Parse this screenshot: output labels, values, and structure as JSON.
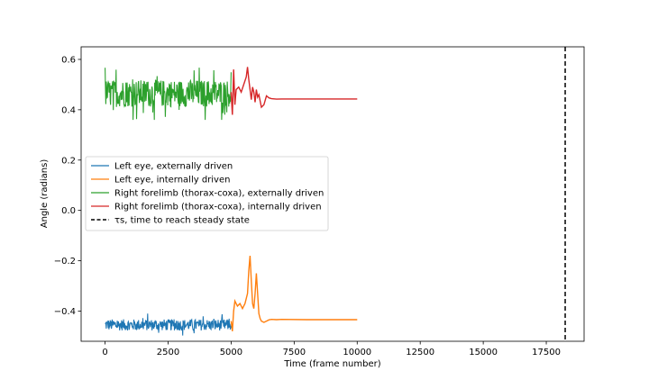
{
  "chart_data": {
    "type": "line",
    "title": "",
    "xlabel": "Time (frame number)",
    "ylabel": "Angle (radians)",
    "xlim": [
      -950,
      19000
    ],
    "ylim": [
      -0.52,
      0.65
    ],
    "x_ticks": [
      0,
      2500,
      5000,
      7500,
      10000,
      12500,
      15000,
      17500
    ],
    "y_ticks": [
      -0.4,
      -0.2,
      0.0,
      0.2,
      0.4,
      0.6
    ],
    "grid": false,
    "legend_position": "center-left",
    "series": [
      {
        "name": "Left eye, externally driven",
        "color": "#1f77b4",
        "kind": "noise",
        "x_range": [
          0,
          5000
        ],
        "center": -0.455,
        "min": -0.51,
        "max": -0.41
      },
      {
        "name": "Left eye, internally driven",
        "color": "#ff7f0e",
        "kind": "line",
        "x": [
          5000,
          5050,
          5100,
          5150,
          5250,
          5350,
          5450,
          5550,
          5650,
          5700,
          5750,
          5800,
          5850,
          5900,
          5950,
          6000,
          6050,
          6100,
          6150,
          6200,
          6300,
          6400,
          6500,
          6600,
          6800,
          7000,
          8000,
          9000,
          10000
        ],
        "y": [
          -0.44,
          -0.48,
          -0.4,
          -0.36,
          -0.38,
          -0.37,
          -0.39,
          -0.37,
          -0.33,
          -0.24,
          -0.18,
          -0.28,
          -0.37,
          -0.39,
          -0.33,
          -0.25,
          -0.33,
          -0.41,
          -0.43,
          -0.44,
          -0.445,
          -0.44,
          -0.435,
          -0.433,
          -0.434,
          -0.433,
          -0.434,
          -0.434,
          -0.434
        ]
      },
      {
        "name": "Right forelimb (thorax-coxa), externally driven",
        "color": "#2ca02c",
        "kind": "noise",
        "x_range": [
          0,
          5000
        ],
        "center": 0.465,
        "min": 0.36,
        "max": 0.6
      },
      {
        "name": "Right forelimb (thorax-coxa), internally driven",
        "color": "#d62728",
        "kind": "line",
        "x": [
          5000,
          5050,
          5100,
          5150,
          5200,
          5300,
          5400,
          5500,
          5600,
          5650,
          5700,
          5750,
          5800,
          5850,
          5900,
          5950,
          6000,
          6050,
          6100,
          6200,
          6300,
          6400,
          6500,
          6600,
          6800,
          7000,
          8000,
          9000,
          10000
        ],
        "y": [
          0.47,
          0.38,
          0.56,
          0.42,
          0.48,
          0.49,
          0.47,
          0.5,
          0.53,
          0.57,
          0.52,
          0.48,
          0.44,
          0.49,
          0.47,
          0.43,
          0.48,
          0.45,
          0.46,
          0.41,
          0.42,
          0.455,
          0.447,
          0.444,
          0.442,
          0.443,
          0.443,
          0.443,
          0.443
        ]
      },
      {
        "name": "τs, time to reach steady state",
        "color": "#000000",
        "kind": "vline",
        "x": 18250,
        "dash": true
      }
    ]
  }
}
